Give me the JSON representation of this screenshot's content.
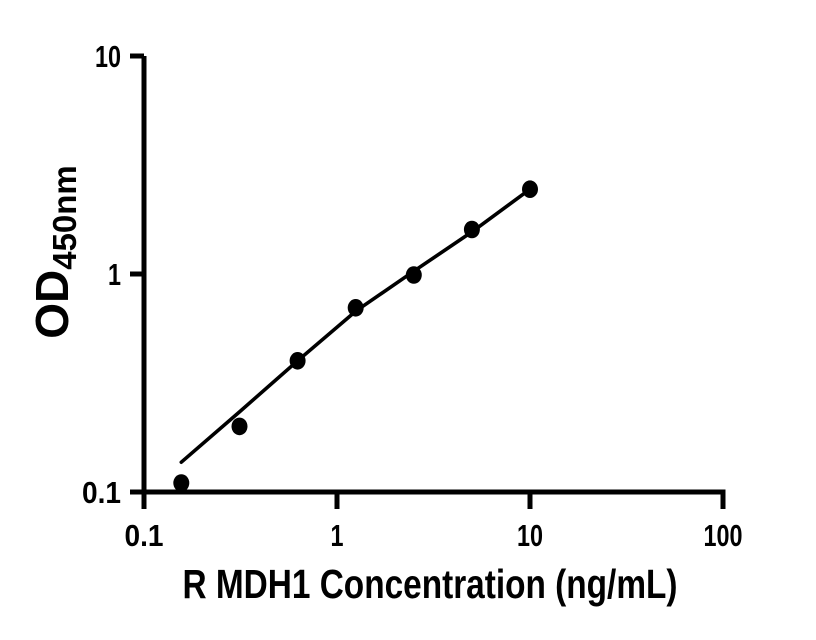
{
  "chart_data": {
    "type": "scatter",
    "title": "",
    "xlabel": "R MDH1 Concentration (ng/mL)",
    "ylabel": "OD",
    "ylabel_subscript": "450nm",
    "x_scale": "log",
    "y_scale": "log",
    "xlim": [
      0.1,
      100
    ],
    "ylim": [
      0.1,
      10
    ],
    "x_ticks": [
      0.1,
      1,
      10,
      100
    ],
    "x_tick_labels": [
      "0.1",
      "1",
      "10",
      "100"
    ],
    "y_ticks": [
      0.1,
      1,
      10
    ],
    "y_tick_labels": [
      "0.1",
      "1",
      "10"
    ],
    "grid": false,
    "legend_position": "none",
    "background_color": "#ffffff",
    "axis_color": "#000000",
    "marker_color": "#000000",
    "line_color": "#000000",
    "series": [
      {
        "name": "standard-curve-points",
        "type": "scatter",
        "x": [
          0.156,
          0.3125,
          0.625,
          1.25,
          2.5,
          5,
          10
        ],
        "y": [
          0.11,
          0.2,
          0.4,
          0.7,
          0.99,
          1.6,
          2.45
        ]
      },
      {
        "name": "fit-curve",
        "type": "line",
        "x": [
          0.156,
          0.3125,
          0.625,
          1.25,
          2.5,
          5,
          10
        ],
        "y": [
          0.137,
          0.233,
          0.4,
          0.675,
          1.03,
          1.56,
          2.45
        ]
      }
    ]
  }
}
